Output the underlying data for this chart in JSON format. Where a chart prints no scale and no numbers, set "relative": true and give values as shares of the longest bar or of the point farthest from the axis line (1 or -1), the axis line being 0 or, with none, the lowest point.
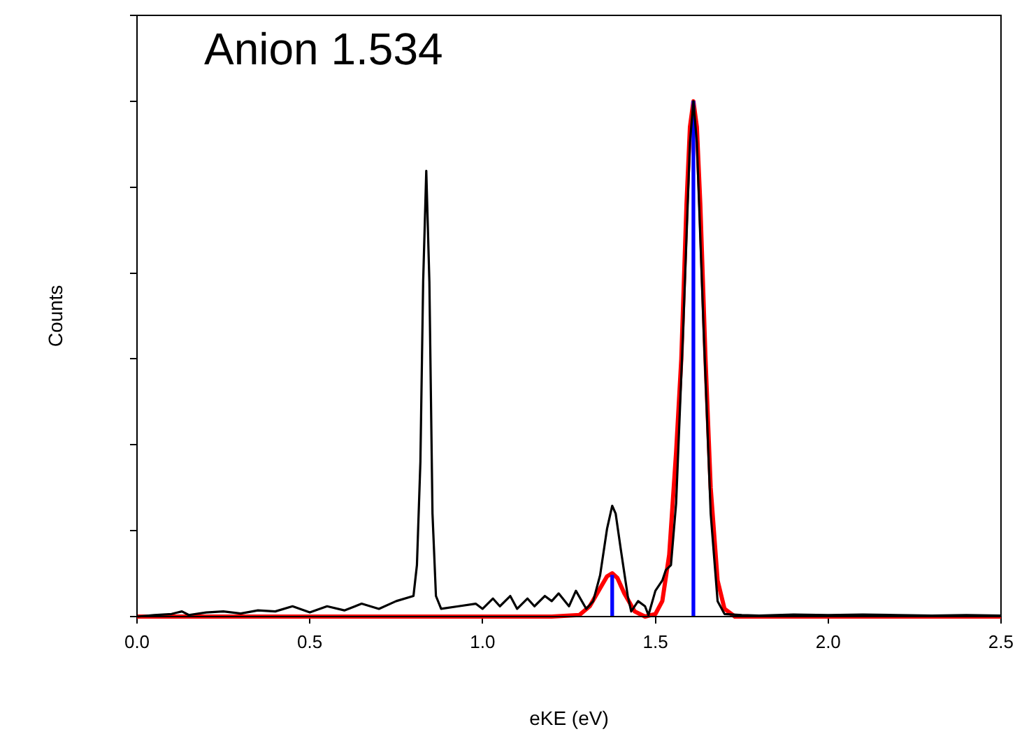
{
  "chart_data": {
    "type": "line",
    "relative": true,
    "xlabel": "eKE (eV)",
    "ylabel": "Counts",
    "annotations": [
      "Anion 1.534"
    ],
    "xlim": [
      0,
      2.5
    ],
    "xticks": [
      {
        "value": 0,
        "label": "0.0"
      },
      {
        "value": 0.5,
        "label": "0.5"
      },
      {
        "value": 1,
        "label": "1.0"
      },
      {
        "value": 1.5,
        "label": "1.5"
      },
      {
        "value": 2,
        "label": "2.0"
      },
      {
        "value": 2.5,
        "label": "2.5"
      }
    ],
    "legend": false,
    "marker": "none",
    "series": [
      {
        "type": "line",
        "color": "#000000",
        "x": [
          0,
          0.05,
          0.1,
          0.13,
          0.15,
          0.2,
          0.25,
          0.3,
          0.35,
          0.4,
          0.45,
          0.5,
          0.55,
          0.6,
          0.65,
          0.7,
          0.75,
          0.8,
          0.81,
          0.82,
          0.828,
          0.837,
          0.846,
          0.855,
          0.865,
          0.88,
          0.93,
          0.98,
          1.0,
          1.03,
          1.05,
          1.08,
          1.1,
          1.13,
          1.15,
          1.18,
          1.2,
          1.22,
          1.25,
          1.27,
          1.3,
          1.32,
          1.34,
          1.36,
          1.375,
          1.385,
          1.4,
          1.42,
          1.43,
          1.45,
          1.47,
          1.48,
          1.5,
          1.52,
          1.53,
          1.545,
          1.56,
          1.58,
          1.6,
          1.61,
          1.62,
          1.64,
          1.66,
          1.68,
          1.7,
          1.75,
          1.8,
          1.9,
          2.0,
          2.1,
          2.2,
          2.3,
          2.4,
          2.5
        ],
        "values": [
          0,
          0.003,
          0.005,
          0.01,
          0.003,
          0.008,
          0.01,
          0.006,
          0.012,
          0.01,
          0.02,
          0.008,
          0.02,
          0.012,
          0.025,
          0.015,
          0.03,
          0.04,
          0.1,
          0.3,
          0.65,
          0.865,
          0.65,
          0.2,
          0.04,
          0.015,
          0.02,
          0.025,
          0.015,
          0.035,
          0.02,
          0.04,
          0.015,
          0.035,
          0.02,
          0.04,
          0.03,
          0.045,
          0.02,
          0.05,
          0.015,
          0.03,
          0.08,
          0.17,
          0.215,
          0.2,
          0.13,
          0.04,
          0.01,
          0.03,
          0.02,
          0.003,
          0.05,
          0.07,
          0.09,
          0.1,
          0.22,
          0.55,
          0.92,
          1,
          0.92,
          0.55,
          0.2,
          0.03,
          0.005,
          0.003,
          0.002,
          0.004,
          0.003,
          0.004,
          0.003,
          0.002,
          0.003,
          0.002
        ]
      },
      {
        "type": "line",
        "color": "#ff0000",
        "x": [
          0,
          1.2,
          1.28,
          1.31,
          1.34,
          1.36,
          1.375,
          1.39,
          1.41,
          1.44,
          1.47,
          1.5,
          1.52,
          1.54,
          1.56,
          1.575,
          1.59,
          1.6,
          1.61,
          1.62,
          1.63,
          1.645,
          1.66,
          1.68,
          1.7,
          1.73,
          2.5
        ],
        "values": [
          0,
          0,
          0.003,
          0.02,
          0.055,
          0.078,
          0.084,
          0.075,
          0.045,
          0.01,
          0,
          0.005,
          0.03,
          0.12,
          0.32,
          0.5,
          0.8,
          0.95,
          1,
          0.95,
          0.8,
          0.5,
          0.25,
          0.07,
          0.015,
          0,
          0
        ]
      },
      {
        "type": "bar",
        "color": "#0000ff",
        "x": [
          1.375,
          1.61
        ],
        "values": [
          0.08,
          1
        ]
      }
    ]
  }
}
